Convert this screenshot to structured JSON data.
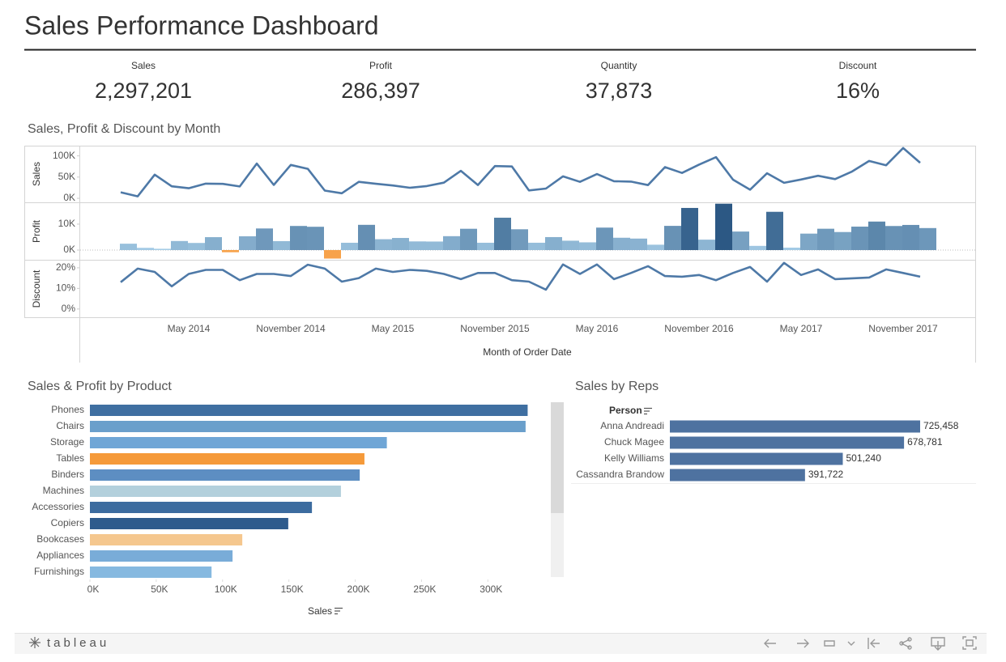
{
  "title": "Sales Performance Dashboard",
  "kpis": [
    {
      "label": "Sales",
      "value": "2,297,201"
    },
    {
      "label": "Profit",
      "value": "286,397"
    },
    {
      "label": "Quantity",
      "value": "37,873"
    },
    {
      "label": "Discount",
      "value": "16%"
    }
  ],
  "chart_data": [
    {
      "type": "panels",
      "title": "Sales, Profit & Discount by Month",
      "x_label": "Month of Order Date",
      "categories": [
        "January 2014",
        "February 2014",
        "March 2014",
        "April 2014",
        "May 2014",
        "June 2014",
        "July 2014",
        "August 2014",
        "September 2014",
        "October 2014",
        "November 2014",
        "December 2014",
        "January 2015",
        "February 2015",
        "March 2015",
        "April 2015",
        "May 2015",
        "June 2015",
        "July 2015",
        "August 2015",
        "September 2015",
        "October 2015",
        "November 2015",
        "December 2015",
        "January 2016",
        "February 2016",
        "March 2016",
        "April 2016",
        "May 2016",
        "June 2016",
        "July 2016",
        "August 2016",
        "September 2016",
        "October 2016",
        "November 2016",
        "December 2016",
        "January 2017",
        "February 2017",
        "March 2017",
        "April 2017",
        "May 2017",
        "June 2017",
        "July 2017",
        "August 2017",
        "September 2017",
        "October 2017",
        "November 2017",
        "December 2017"
      ],
      "xticks": [
        "May 2014",
        "November 2014",
        "May 2015",
        "November 2015",
        "May 2016",
        "November 2016",
        "May 2017",
        "November 2017"
      ],
      "panels": [
        {
          "type": "line",
          "y_label": "Sales",
          "color": "#4e79a7",
          "values": [
            14237,
            4520,
            55691,
            28295,
            23648,
            34595,
            33946,
            27909,
            81777,
            31453,
            78629,
            69546,
            18174,
            11951,
            38726,
            34195,
            30132,
            24797,
            28765,
            36898,
            64595,
            31405,
            75972,
            74920,
            18542,
            22979,
            51716,
            38750,
            56988,
            40344,
            39262,
            31115,
            73410,
            59688,
            79412,
            96999,
            43971,
            20301,
            58872,
            36522,
            44261,
            52982,
            45264,
            63121,
            87867,
            77777,
            118448,
            83829
          ],
          "ylim": [
            -9500,
            124000
          ],
          "yticks": [
            {
              "value": 0,
              "label": "0K"
            },
            {
              "value": 50000,
              "label": "50K"
            },
            {
              "value": 100000,
              "label": "100K"
            }
          ]
        },
        {
          "type": "bar",
          "y_label": "Profit",
          "colors": [
            "#a9d0ea",
            "#2a5783"
          ],
          "negative_color": "#f7a24a",
          "values": [
            2450,
            862,
            499,
            3489,
            2739,
            4977,
            -841,
            5318,
            8329,
            3448,
            9292,
            8983,
            -3281,
            2814,
            9732,
            4187,
            4668,
            3335,
            3289,
            5356,
            8210,
            2817,
            12474,
            8017,
            2824,
            5005,
            3611,
            2977,
            8662,
            4750,
            4433,
            2063,
            9328,
            16243,
            4011,
            17885,
            7140,
            1614,
            14752,
            933,
            6342,
            8223,
            6952,
            9040,
            10992,
            9275,
            9690,
            8483
          ],
          "ylim": [
            -3750,
            18100
          ],
          "yticks": [
            {
              "value": 0,
              "label": "0K"
            },
            {
              "value": 10000,
              "label": "10K"
            }
          ]
        },
        {
          "type": "line",
          "y_label": "Discount",
          "color": "#4e79a7",
          "values": [
            13,
            19.6,
            18,
            11,
            17,
            19,
            19,
            14,
            17,
            17,
            16,
            21.5,
            19.6,
            13.3,
            15,
            19.6,
            18,
            19,
            18.5,
            17,
            14.5,
            17.5,
            17.5,
            14,
            13.3,
            9.4,
            21.6,
            17,
            21.6,
            14.5,
            17.5,
            20.8,
            16,
            15.7,
            16.5,
            14,
            17.5,
            20.4,
            13.3,
            22.4,
            16.5,
            19.2,
            14.5,
            14.9,
            15.3,
            19.2,
            17.5,
            15.7
          ],
          "ylim": [
            -4,
            23.5
          ],
          "yticks": [
            {
              "value": 0,
              "label": "0%"
            },
            {
              "value": 10,
              "label": "10%"
            },
            {
              "value": 20,
              "label": "20%"
            }
          ]
        }
      ]
    },
    {
      "type": "hbar",
      "title": "Sales & Profit by Product",
      "x_label": "Sales",
      "categories": [
        "Phones",
        "Chairs",
        "Storage",
        "Tables",
        "Binders",
        "Machines",
        "Accessories",
        "Copiers",
        "Bookcases",
        "Appliances",
        "Furnishings"
      ],
      "values": [
        330007,
        328449,
        223844,
        206966,
        203413,
        189239,
        167380,
        149528,
        114880,
        107532,
        91705
      ],
      "colors": [
        "#3f6fa1",
        "#6a9fcb",
        "#6fa6d6",
        "#f59a3a",
        "#5d8ec2",
        "#b3d0dc",
        "#3c6c9f",
        "#2e5b8c",
        "#f5c78e",
        "#79acd8",
        "#86b9e0"
      ],
      "xlim": [
        0,
        345000
      ],
      "xticks": [
        {
          "value": 0,
          "label": "0K"
        },
        {
          "value": 50000,
          "label": "50K"
        },
        {
          "value": 100000,
          "label": "100K"
        },
        {
          "value": 150000,
          "label": "150K"
        },
        {
          "value": 200000,
          "label": "200K"
        },
        {
          "value": 250000,
          "label": "250K"
        },
        {
          "value": 300000,
          "label": "300K"
        }
      ]
    },
    {
      "type": "hbar-labeled",
      "title": "Sales by Reps",
      "column_label": "Person",
      "categories": [
        "Anna Andreadi",
        "Chuck Magee",
        "Kelly Williams",
        "Cassandra Brandow"
      ],
      "values": [
        725458,
        678781,
        501240,
        391722
      ],
      "value_labels": [
        "725,458",
        "678,781",
        "501,240",
        "391,722"
      ],
      "color": "#4e72a0"
    }
  ],
  "footer": {
    "brand": "tableau"
  }
}
